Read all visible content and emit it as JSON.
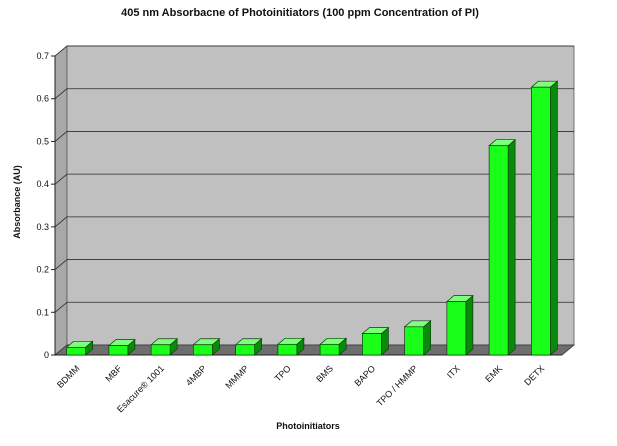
{
  "chart_data": {
    "type": "bar",
    "title": "405 nm Absorbacne of Photoinitiators (100 ppm Concentration of PI)",
    "xlabel": "Photoinitiators",
    "ylabel": "Absorbance (AU)",
    "ylim": [
      0,
      0.7
    ],
    "yticks": [
      "0",
      "0.1",
      "0.2",
      "0.3",
      "0.4",
      "0.5",
      "0.6",
      "0.7"
    ],
    "categories": [
      "BDMM",
      "MBF",
      "Esacure® 1001",
      "4MBP",
      "MMMP",
      "TPO",
      "BMS",
      "BAPO",
      "TPO / HMMP",
      "ITX",
      "EMK",
      "DETX"
    ],
    "values": [
      0.018,
      0.022,
      0.024,
      0.024,
      0.024,
      0.025,
      0.025,
      0.05,
      0.066,
      0.125,
      0.49,
      0.627
    ],
    "grid": true,
    "legend": "none",
    "colors": {
      "bar_front": "#19ff19",
      "bar_side": "#0a8a0a",
      "bar_top": "#7dff7d",
      "bar_stroke": "#0b3d0b",
      "plot_bg": "#c0c0c0",
      "plot_side": "#a8a8a8",
      "floor": "#6e6e6e",
      "grid": "#2b2b2b"
    }
  }
}
